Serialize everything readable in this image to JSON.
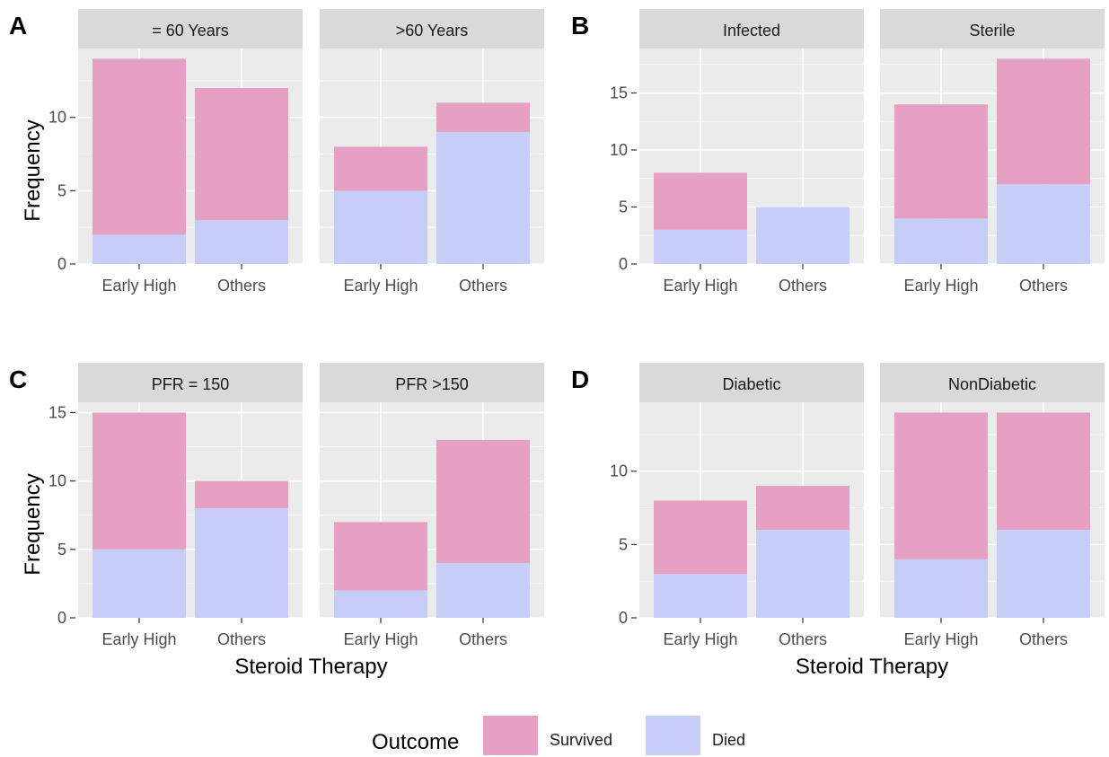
{
  "chart_data": [
    {
      "panel_letter": "A",
      "type": "bar",
      "stacked": true,
      "ylabel": "Frequency",
      "xlabel": "",
      "ylim": [
        0,
        14.7
      ],
      "yticks": [
        0,
        5,
        10
      ],
      "categories": [
        "Early High",
        "Others"
      ],
      "facets": [
        {
          "label": "= 60 Years",
          "series": [
            {
              "name": "Died",
              "values": [
                2,
                3
              ]
            },
            {
              "name": "Survived",
              "values": [
                12,
                9
              ]
            }
          ]
        },
        {
          "label": ">60 Years",
          "series": [
            {
              "name": "Died",
              "values": [
                5,
                9
              ]
            },
            {
              "name": "Survived",
              "values": [
                3,
                2
              ]
            }
          ]
        }
      ]
    },
    {
      "panel_letter": "B",
      "type": "bar",
      "stacked": true,
      "ylabel": "",
      "xlabel": "",
      "ylim": [
        0,
        18.9
      ],
      "yticks": [
        0,
        5,
        10,
        15
      ],
      "categories": [
        "Early High",
        "Others"
      ],
      "facets": [
        {
          "label": "Infected",
          "series": [
            {
              "name": "Died",
              "values": [
                3,
                5
              ]
            },
            {
              "name": "Survived",
              "values": [
                5,
                0
              ]
            }
          ]
        },
        {
          "label": "Sterile",
          "series": [
            {
              "name": "Died",
              "values": [
                4,
                7
              ]
            },
            {
              "name": "Survived",
              "values": [
                10,
                11
              ]
            }
          ]
        }
      ]
    },
    {
      "panel_letter": "C",
      "type": "bar",
      "stacked": true,
      "ylabel": "Frequency",
      "xlabel": "Steroid Therapy",
      "ylim": [
        0,
        15.75
      ],
      "yticks": [
        0,
        5,
        10,
        15
      ],
      "categories": [
        "Early High",
        "Others"
      ],
      "facets": [
        {
          "label": "PFR = 150",
          "series": [
            {
              "name": "Died",
              "values": [
                5,
                8
              ]
            },
            {
              "name": "Survived",
              "values": [
                10,
                2
              ]
            }
          ]
        },
        {
          "label": "PFR >150",
          "series": [
            {
              "name": "Died",
              "values": [
                2,
                4
              ]
            },
            {
              "name": "Survived",
              "values": [
                5,
                9
              ]
            }
          ]
        }
      ]
    },
    {
      "panel_letter": "D",
      "type": "bar",
      "stacked": true,
      "ylabel": "",
      "xlabel": "Steroid Therapy",
      "ylim": [
        0,
        14.7
      ],
      "yticks": [
        0,
        5,
        10
      ],
      "categories": [
        "Early High",
        "Others"
      ],
      "facets": [
        {
          "label": "Diabetic",
          "series": [
            {
              "name": "Died",
              "values": [
                3,
                6
              ]
            },
            {
              "name": "Survived",
              "values": [
                5,
                3
              ]
            }
          ]
        },
        {
          "label": "NonDiabetic",
          "series": [
            {
              "name": "Died",
              "values": [
                4,
                6
              ]
            },
            {
              "name": "Survived",
              "values": [
                10,
                8
              ]
            }
          ]
        }
      ]
    }
  ],
  "legend": {
    "title": "Outcome",
    "items": [
      {
        "name": "Survived",
        "color": "#e6a0c4"
      },
      {
        "name": "Died",
        "color": "#c6cdf7"
      }
    ]
  },
  "colors": {
    "Survived": "#e6a0c4",
    "Died": "#c6cdf7",
    "panel_bg": "#ebebeb",
    "strip_bg": "#d9d9d9",
    "grid": "#ffffff"
  }
}
